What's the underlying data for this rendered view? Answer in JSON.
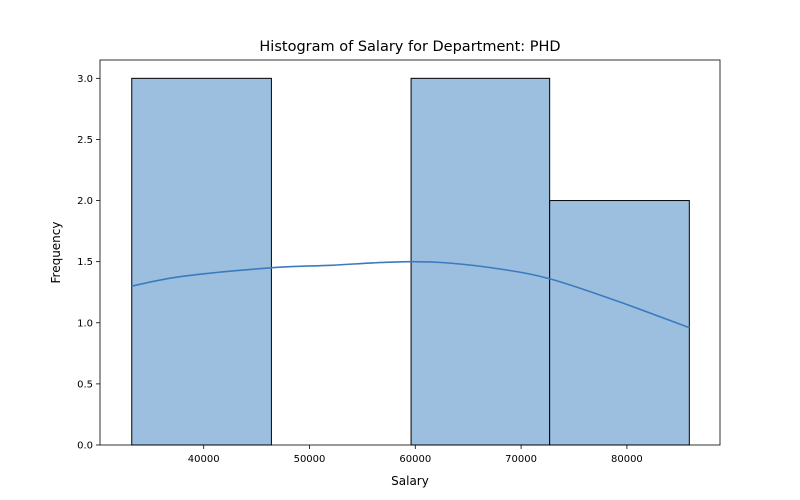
{
  "chart_data": {
    "type": "bar",
    "title": "Histogram of Salary for Department: PHD",
    "xlabel": "Salary",
    "ylabel": "Frequency",
    "bins": [
      {
        "start": 33200,
        "end": 46400,
        "count": 3
      },
      {
        "start": 46400,
        "end": 59600,
        "count": 0
      },
      {
        "start": 59600,
        "end": 72700,
        "count": 3
      },
      {
        "start": 72700,
        "end": 85900,
        "count": 2
      }
    ],
    "kde": {
      "x": [
        33200,
        38000,
        46400,
        52000,
        56000,
        59600,
        63000,
        68000,
        72700,
        79000,
        85900
      ],
      "y": [
        1.3,
        1.38,
        1.45,
        1.47,
        1.49,
        1.5,
        1.49,
        1.44,
        1.36,
        1.18,
        0.96
      ]
    },
    "xlim": [
      30200,
      88800
    ],
    "ylim": [
      0,
      3.15
    ],
    "xticks": [
      40000,
      50000,
      60000,
      70000,
      80000
    ],
    "yticks": [
      0.0,
      0.5,
      1.0,
      1.5,
      2.0,
      2.5,
      3.0
    ],
    "xtick_labels": [
      "40000",
      "50000",
      "60000",
      "70000",
      "80000"
    ],
    "ytick_labels": [
      "0.0",
      "0.5",
      "1.0",
      "1.5",
      "2.0",
      "2.5",
      "3.0"
    ],
    "bar_color": "#9dbfdf",
    "bar_edge_color": "#000000",
    "kde_color": "#3a7bbf",
    "grid": false,
    "legend": false
  }
}
